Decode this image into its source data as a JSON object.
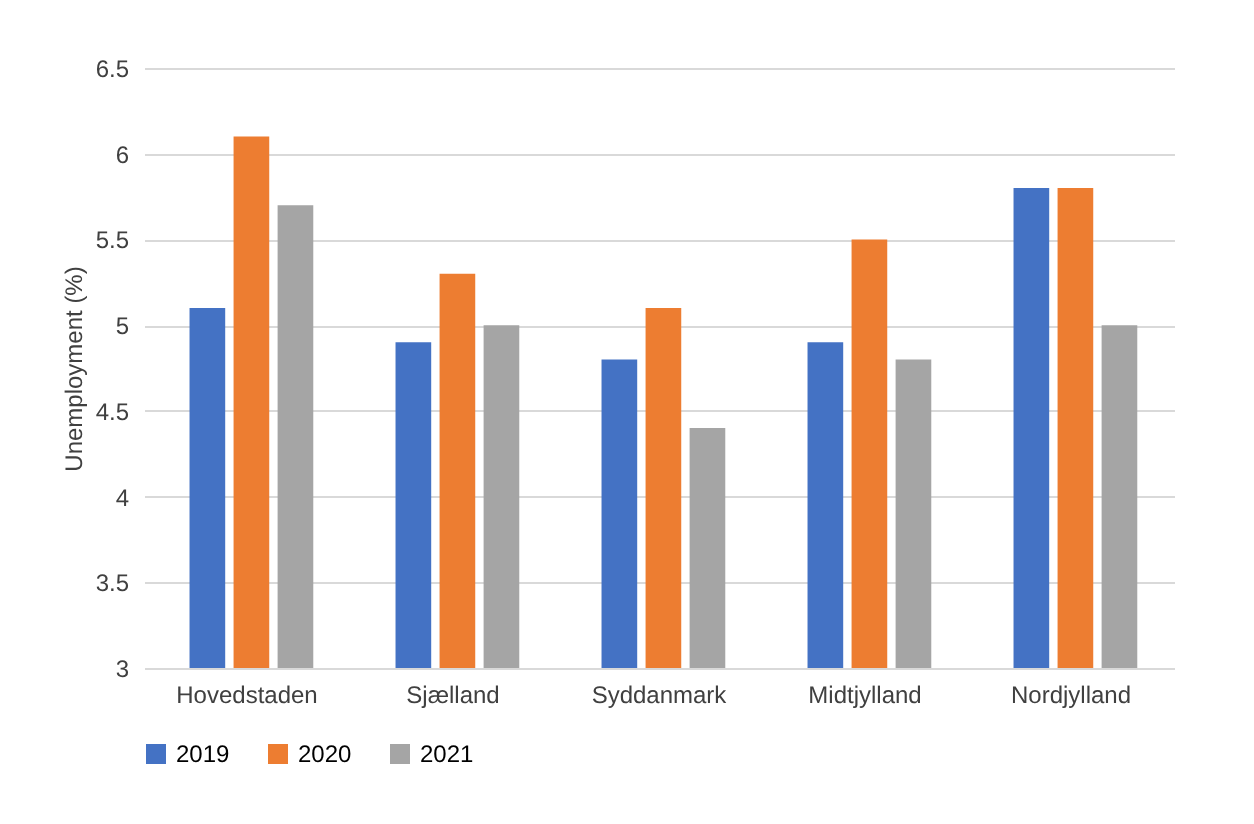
{
  "chart_data": {
    "type": "bar",
    "ylabel": "Unemployment (%)",
    "categories": [
      "Hovedstaden",
      "Sjælland",
      "Syddanmark",
      "Midtjylland",
      "Nordjylland"
    ],
    "series": [
      {
        "name": "2019",
        "color": "#4472c4",
        "values": [
          5.1,
          4.9,
          4.8,
          4.9,
          5.8
        ]
      },
      {
        "name": "2020",
        "color": "#ed7d31",
        "values": [
          6.1,
          5.3,
          5.1,
          5.5,
          5.8
        ]
      },
      {
        "name": "2021",
        "color": "#a5a5a5",
        "values": [
          5.7,
          5.0,
          4.4,
          4.8,
          5.0
        ]
      }
    ],
    "ylim": [
      3,
      6.5
    ],
    "yticks": [
      3,
      3.5,
      4,
      4.5,
      5,
      5.5,
      6,
      6.5
    ],
    "grid": "y",
    "legend": "bottom"
  }
}
